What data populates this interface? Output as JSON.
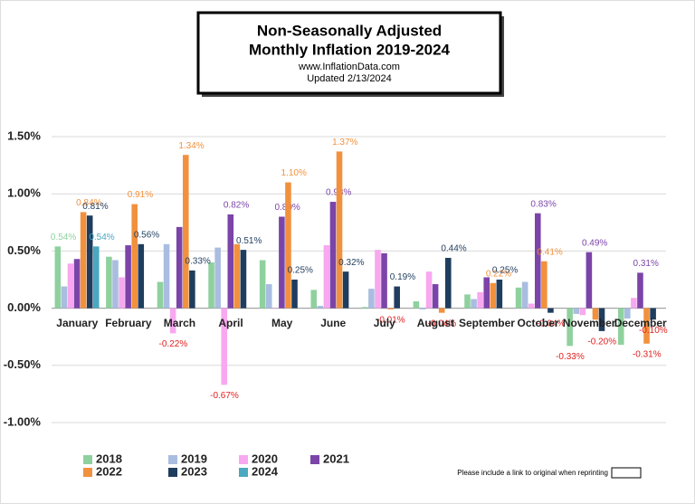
{
  "chart_data": {
    "type": "bar",
    "title": "Non-Seasonally Adjusted",
    "subtitle": "Monthly Inflation 2019-2024",
    "source": "www.InflationData.com",
    "updated": "Updated  2/13/2024",
    "footer": "Please include a link to original when reprinting",
    "categories": [
      "January",
      "February",
      "March",
      "April",
      "May",
      "June",
      "July",
      "August",
      "September",
      "October",
      "November",
      "December"
    ],
    "ylim": [
      -1.0,
      1.5
    ],
    "yticks": [
      {
        "value": 1.5,
        "label": "1.50%"
      },
      {
        "value": 1.0,
        "label": "1.00%"
      },
      {
        "value": 0.5,
        "label": "0.50%"
      },
      {
        "value": 0,
        "label": "0.00%"
      },
      {
        "value": -0.5,
        "label": "-0.50%"
      },
      {
        "value": -1.0,
        "label": "-1.00%"
      }
    ],
    "grid": true,
    "legend": "bottom",
    "series": [
      {
        "name": "2018",
        "color": "#8fd19e",
        "values": [
          0.54,
          0.45,
          0.23,
          0.4,
          0.42,
          0.16,
          0.01,
          0.06,
          0.12,
          0.18,
          -0.33,
          -0.32
        ],
        "value_labels": [
          "0.54%",
          null,
          null,
          null,
          null,
          null,
          null,
          null,
          null,
          null,
          "-0.33%",
          null
        ]
      },
      {
        "name": "2019",
        "color": "#a9bde0",
        "values": [
          0.19,
          0.42,
          0.56,
          0.53,
          0.21,
          0.02,
          0.17,
          -0.01,
          0.08,
          0.23,
          -0.05,
          -0.09
        ],
        "value_labels": [
          null,
          null,
          null,
          null,
          null,
          null,
          null,
          null,
          null,
          null,
          null,
          null
        ]
      },
      {
        "name": "2020",
        "color": "#f7a8ef",
        "values": [
          0.39,
          0.27,
          -0.22,
          -0.67,
          0.0,
          0.55,
          0.51,
          0.32,
          0.14,
          0.04,
          -0.06,
          0.09
        ],
        "value_labels": [
          null,
          null,
          "-0.22%",
          "-0.67%",
          null,
          null,
          null,
          null,
          null,
          null,
          null,
          null
        ]
      },
      {
        "name": "2021",
        "color": "#7b44a8",
        "values": [
          0.43,
          0.55,
          0.71,
          0.82,
          0.8,
          0.93,
          0.48,
          0.21,
          0.27,
          0.83,
          0.49,
          0.31
        ],
        "value_labels": [
          null,
          null,
          null,
          "0.82%",
          "0.80%",
          "0.93%",
          null,
          null,
          null,
          "0.83%",
          "0.49%",
          "0.31%"
        ]
      },
      {
        "name": "2022",
        "color": "#f2913d",
        "values": [
          0.84,
          0.91,
          1.34,
          0.56,
          1.1,
          1.37,
          -0.01,
          -0.04,
          0.22,
          0.41,
          -0.1,
          -0.31
        ],
        "value_labels": [
          "0.84%",
          "0.91%",
          "1.34%",
          null,
          "1.10%",
          "1.37%",
          "-0.01%",
          "-0.04%",
          "0.22%",
          "0.41%",
          null,
          "-0.31%"
        ]
      },
      {
        "name": "2023",
        "color": "#1f3d5e",
        "values": [
          0.81,
          0.56,
          0.33,
          0.51,
          0.25,
          0.32,
          0.19,
          0.44,
          0.25,
          -0.04,
          -0.2,
          -0.1
        ],
        "value_labels": [
          "0.81%",
          "0.56%",
          "0.33%",
          "0.51%",
          "0.25%",
          "0.32%",
          "0.19%",
          "0.44%",
          "0.25%",
          "-0.04%",
          "-0.20%",
          "-0.10%"
        ]
      },
      {
        "name": "2024",
        "color": "#4aa8c0",
        "values": [
          0.54,
          null,
          null,
          null,
          null,
          null,
          null,
          null,
          null,
          null,
          null,
          null
        ],
        "value_labels": [
          "0.54%",
          null,
          null,
          null,
          null,
          null,
          null,
          null,
          null,
          null,
          null,
          null
        ]
      }
    ]
  }
}
